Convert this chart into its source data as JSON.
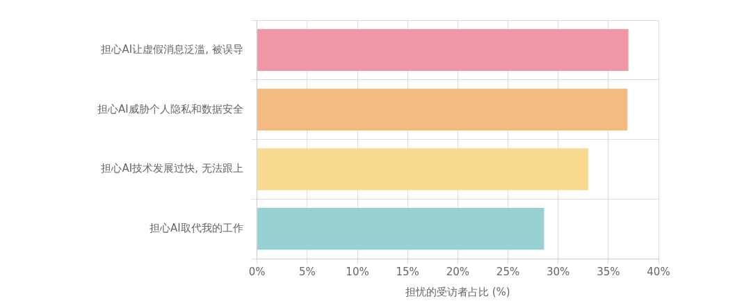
{
  "chart_data": {
    "type": "bar",
    "orientation": "horizontal",
    "xlabel": "担忧的受访者占比 (%)",
    "categories": [
      "担心AI让虚假消息泛滥, 被误导",
      "担心AI威胁个人隐私和数据安全",
      "担心AI技术发展过快, 无法跟上",
      "担心AI取代我的工作"
    ],
    "values": [
      37.0,
      36.9,
      33.0,
      28.6
    ],
    "colors": [
      "#f097a5",
      "#f3bb80",
      "#f7da8f",
      "#96d0d1"
    ],
    "xlim": [
      0,
      40
    ],
    "xticks": [
      {
        "value": 0,
        "label": "0%"
      },
      {
        "value": 5,
        "label": "5%"
      },
      {
        "value": 10,
        "label": "10%"
      },
      {
        "value": 15,
        "label": "15%"
      },
      {
        "value": 20,
        "label": "20%"
      },
      {
        "value": 25,
        "label": "25%"
      },
      {
        "value": 30,
        "label": "30%"
      },
      {
        "value": 35,
        "label": "35%"
      },
      {
        "value": 40,
        "label": "40%"
      }
    ],
    "grid": true,
    "legend": false
  }
}
